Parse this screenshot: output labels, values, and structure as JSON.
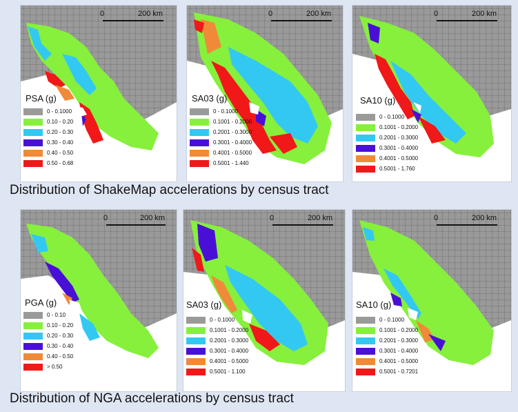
{
  "panels": [
    {
      "scale_zero": "0",
      "scale_km": "200 km",
      "title": "PSA (g)",
      "legend": [
        {
          "label": "0 - 0.1000",
          "color": "#9a9a9a"
        },
        {
          "label": "0.10 - 0.20",
          "color": "#86f03c"
        },
        {
          "label": "0.20 - 0.30",
          "color": "#33c8f2"
        },
        {
          "label": "0.30 - 0.40",
          "color": "#4a0fd6"
        },
        {
          "label": "0.40 - 0.50",
          "color": "#f08a38"
        },
        {
          "label": "0.50 - 0.68",
          "color": "#f01818"
        }
      ]
    },
    {
      "scale_zero": "0",
      "scale_km": "200 km",
      "title": "SA03 (g)",
      "legend": [
        {
          "label": "0 - 0.1000",
          "color": "#9a9a9a"
        },
        {
          "label": "0.1001 - 0.2000",
          "color": "#86f03c"
        },
        {
          "label": "0.2001 - 0.3000",
          "color": "#33c8f2"
        },
        {
          "label": "0.3001 - 0.4000",
          "color": "#4a0fd6"
        },
        {
          "label": "0.4001 - 0.5000",
          "color": "#f08a38"
        },
        {
          "label": "0.5001 - 1.440",
          "color": "#f01818"
        }
      ]
    },
    {
      "scale_zero": "0",
      "scale_km": "200 km",
      "title": "SA10 (g)",
      "legend": [
        {
          "label": "0 - 0.1000",
          "color": "#9a9a9a"
        },
        {
          "label": "0.1001 - 0.2000",
          "color": "#86f03c"
        },
        {
          "label": "0.2001 - 0.3000",
          "color": "#33c8f2"
        },
        {
          "label": "0.3001 - 0.4000",
          "color": "#4a0fd6"
        },
        {
          "label": "0.4001 - 0.5000",
          "color": "#f08a38"
        },
        {
          "label": "0.5001 - 1.760",
          "color": "#f01818"
        }
      ]
    },
    {
      "scale_zero": "0",
      "scale_km": "200 km",
      "title": "PGA (g)",
      "legend": [
        {
          "label": "0 - 0.10",
          "color": "#9a9a9a"
        },
        {
          "label": "0.10 - 0.20",
          "color": "#86f03c"
        },
        {
          "label": "0.20 - 0.30",
          "color": "#33c8f2"
        },
        {
          "label": "0.30 - 0.40",
          "color": "#4a0fd6"
        },
        {
          "label": "0.40 - 0.50",
          "color": "#f08a38"
        },
        {
          "label": "> 0.50",
          "color": "#f01818"
        }
      ]
    },
    {
      "scale_zero": "0",
      "scale_km": "200 km",
      "title": "SA03 (g)",
      "legend": [
        {
          "label": "0 - 0.1000",
          "color": "#9a9a9a"
        },
        {
          "label": "0.1001 - 0.2000",
          "color": "#86f03c"
        },
        {
          "label": "0.2001 - 0.3000",
          "color": "#33c8f2"
        },
        {
          "label": "0.3001 - 0.4000",
          "color": "#4a0fd6"
        },
        {
          "label": "0.4001 - 0.5000",
          "color": "#f08a38"
        },
        {
          "label": "0.5001 - 1.100",
          "color": "#f01818"
        }
      ]
    },
    {
      "scale_zero": "0",
      "scale_km": "200 km",
      "title": "SA10 (g)",
      "legend": [
        {
          "label": "0 - 0.1000",
          "color": "#9a9a9a"
        },
        {
          "label": "0.1001 - 0.2000",
          "color": "#86f03c"
        },
        {
          "label": "0.2001 - 0.3000",
          "color": "#33c8f2"
        },
        {
          "label": "0.3001 - 0.4000",
          "color": "#4a0fd6"
        },
        {
          "label": "0.4001 - 0.5000",
          "color": "#f08a38"
        },
        {
          "label": "0.5001 - 0.7201",
          "color": "#f01818"
        }
      ]
    }
  ],
  "captions": {
    "shakemap": "Distribution of ShakeMap accelerations by census tract",
    "nga": "Distribution of NGA accelerations by census tract"
  },
  "colors": {
    "background": "#dfe6f3",
    "land_gray": "#9a9a9a",
    "bay_water": "#ffffff"
  }
}
